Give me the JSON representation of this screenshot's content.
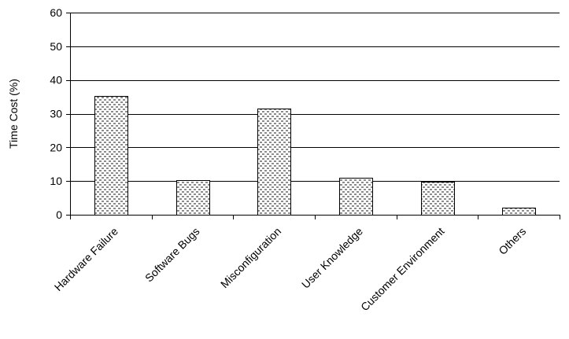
{
  "chart_data": {
    "type": "bar",
    "title": "",
    "xlabel": "",
    "ylabel": "Time Cost (%)",
    "ylim": [
      0,
      60
    ],
    "yticks": [
      0,
      10,
      20,
      30,
      40,
      50,
      60
    ],
    "grid": true,
    "legend": "none",
    "categories": [
      "Hardware Failure",
      "Software Bugs",
      "Misconfiguration",
      "User Knowledge",
      "Customer Environment",
      "Others"
    ],
    "values": [
      35.3,
      10.3,
      31.5,
      11,
      9.8,
      2.2
    ],
    "bar_pattern": "dotted-dashed",
    "colors": {
      "axis": "#000000",
      "grid": "#000000",
      "bar_fill": "#ffffff",
      "bar_pattern": "#000000"
    }
  }
}
